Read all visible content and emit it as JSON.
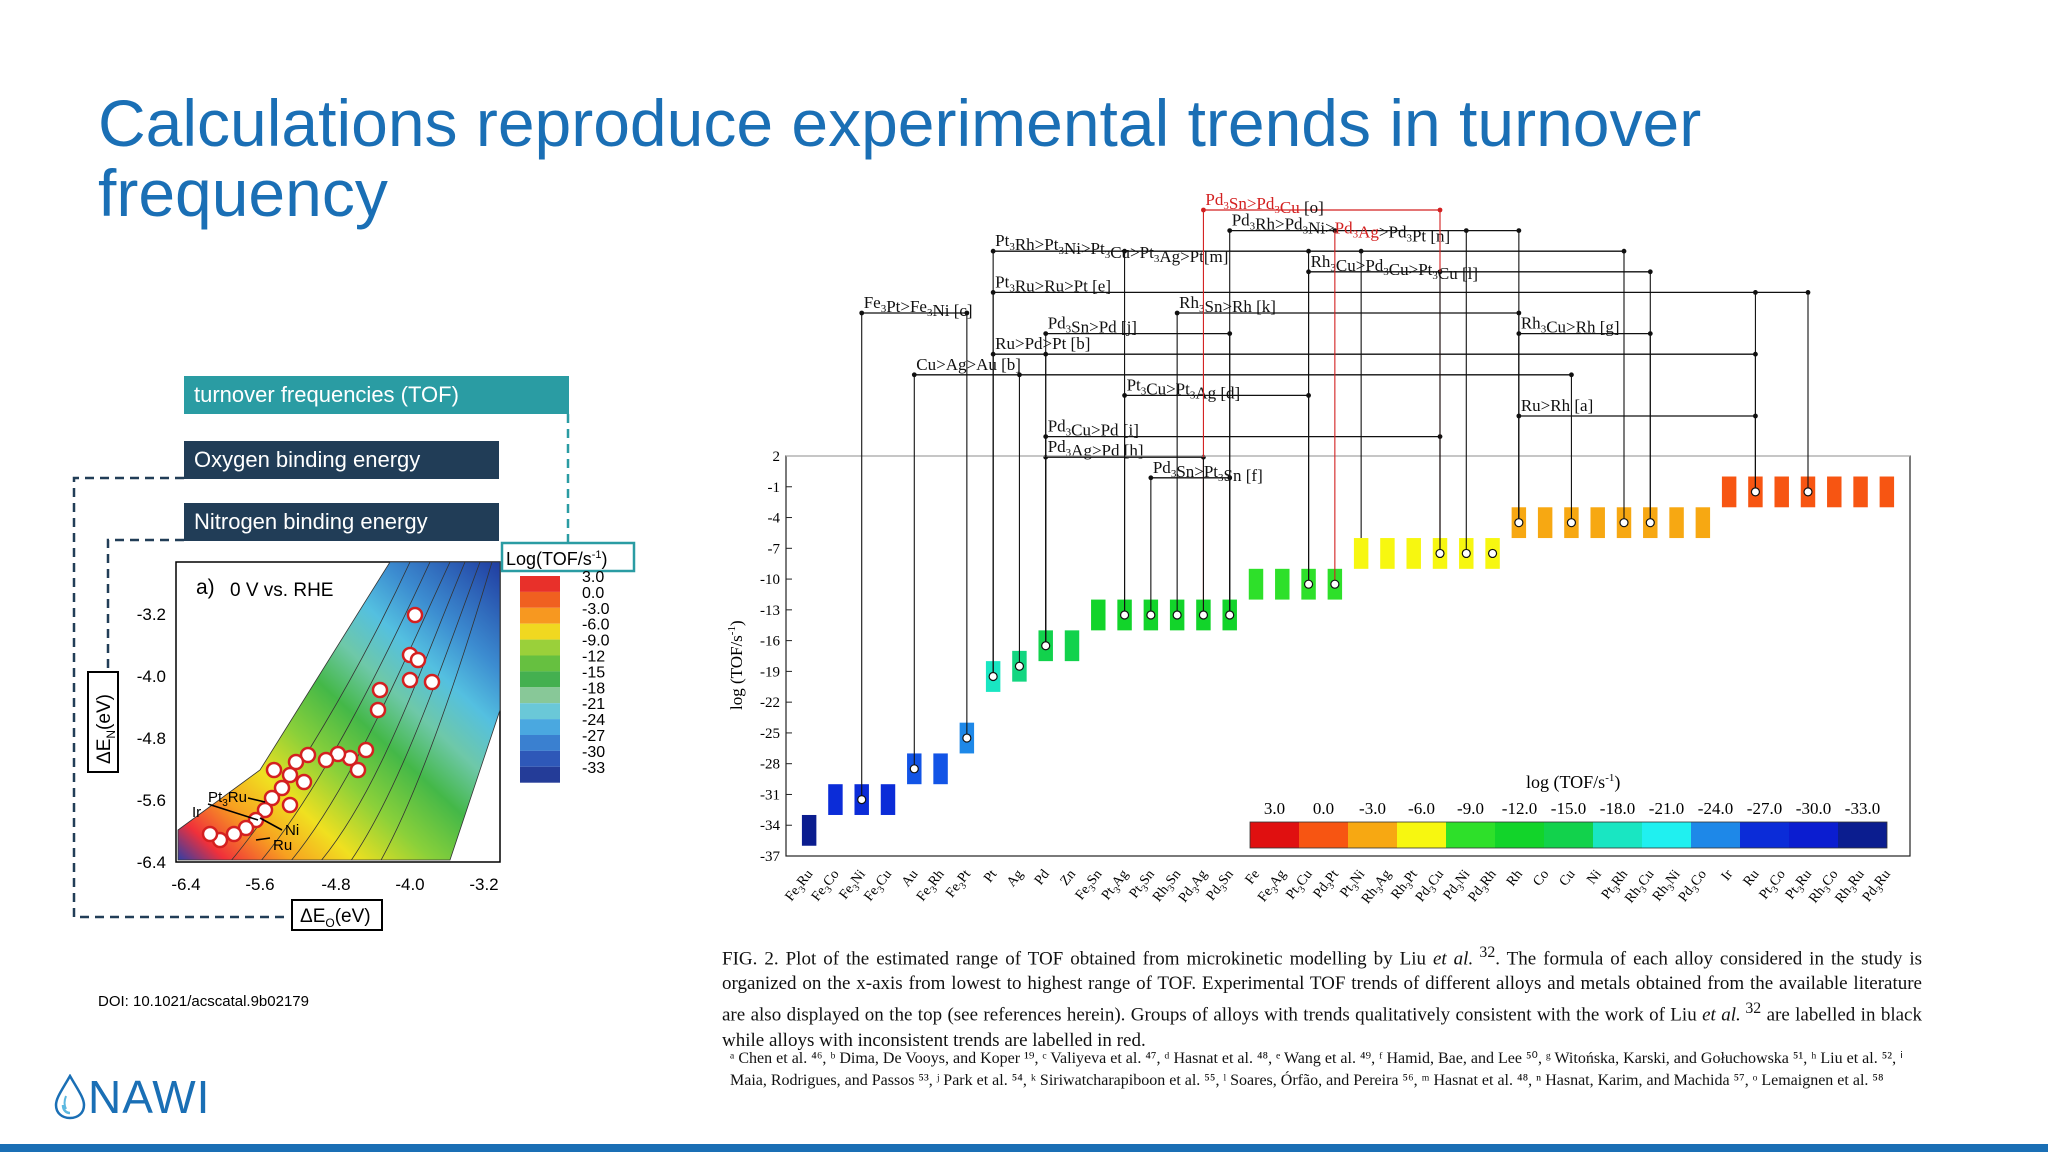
{
  "slide": {
    "title": "Calculations reproduce experimental trends in turnover frequency",
    "labels": {
      "tof": "turnover frequencies (TOF)",
      "oxygen": "Oxygen binding energy",
      "nitrogen": "Nitrogen binding energy"
    },
    "doi": "DOI: 10.1021/acscatal.9b02179",
    "logo_text": "NAWI",
    "colors": {
      "title": "#1a6fb5",
      "tof_box": "#2a9ca3",
      "dark_box": "#213d57",
      "trend_red": "#d32020"
    }
  },
  "left_plot": {
    "panel_label": "a)",
    "condition": "0 V vs. RHE",
    "xlabel": "ΔE",
    "xlabel_sub": "O",
    "xlabel_unit": "(eV)",
    "ylabel": "ΔE",
    "ylabel_sub": "N",
    "ylabel_unit": "(eV)",
    "xticks": [
      "-6.4",
      "-5.6",
      "-4.8",
      "-4.0",
      "-3.2"
    ],
    "yticks": [
      "-3.2",
      "-4.0",
      "-4.8",
      "-5.6",
      "-6.4"
    ],
    "colorbar_title": "Log(TOF/s",
    "colorbar_title_sup": "-1",
    "colorbar_title_end": ")",
    "colorbar_ticks": [
      "3.0",
      "0.0",
      "-3.0",
      "-6.0",
      "-9.0",
      "-12",
      "-15",
      "-18",
      "-21",
      "-24",
      "-27",
      "-30",
      "-33"
    ],
    "annotations": [
      "Pt",
      "3",
      "Ru",
      "Ir",
      "Ni",
      "Ru"
    ]
  },
  "chart_data": {
    "type": "bar",
    "ylabel": "log (TOF/s",
    "ylabel_sup": "-1",
    "ylabel_end": ")",
    "yticks": [
      "2",
      "-1",
      "-4",
      "-7",
      "-10",
      "-13",
      "-16",
      "-19",
      "-22",
      "-25",
      "-28",
      "-31",
      "-34",
      "-37"
    ],
    "ylim": [
      -37,
      2
    ],
    "categories": [
      {
        "n": "Fe",
        "s": "3",
        "m": "Ru"
      },
      {
        "n": "Fe",
        "s": "3",
        "m": "Co"
      },
      {
        "n": "Fe",
        "s": "3",
        "m": "Ni"
      },
      {
        "n": "Fe",
        "s": "3",
        "m": "Cu"
      },
      {
        "n": "Au",
        "s": "",
        "m": ""
      },
      {
        "n": "Fe",
        "s": "3",
        "m": "Rh"
      },
      {
        "n": "Fe",
        "s": "3",
        "m": "Pt"
      },
      {
        "n": "Pt",
        "s": "",
        "m": ""
      },
      {
        "n": "Ag",
        "s": "",
        "m": ""
      },
      {
        "n": "Pd",
        "s": "",
        "m": ""
      },
      {
        "n": "Zn",
        "s": "",
        "m": ""
      },
      {
        "n": "Fe",
        "s": "3",
        "m": "Sn"
      },
      {
        "n": "Pt",
        "s": "3",
        "m": "Ag"
      },
      {
        "n": "Pt",
        "s": "3",
        "m": "Sn"
      },
      {
        "n": "Rh",
        "s": "3",
        "m": "Sn"
      },
      {
        "n": "Pd",
        "s": "3",
        "m": "Ag"
      },
      {
        "n": "Pd",
        "s": "3",
        "m": "Sn"
      },
      {
        "n": "Fe",
        "s": "",
        "m": ""
      },
      {
        "n": "Fe",
        "s": "3",
        "m": "Ag"
      },
      {
        "n": "Pt",
        "s": "3",
        "m": "Cu"
      },
      {
        "n": "Pd",
        "s": "3",
        "m": "Pt"
      },
      {
        "n": "Pt",
        "s": "3",
        "m": "Ni"
      },
      {
        "n": "Rh",
        "s": "3",
        "m": "Ag"
      },
      {
        "n": "Rh",
        "s": "3",
        "m": "Pt"
      },
      {
        "n": "Pd",
        "s": "3",
        "m": "Cu"
      },
      {
        "n": "Pd",
        "s": "3",
        "m": "Ni"
      },
      {
        "n": "Pd",
        "s": "3",
        "m": "Rh"
      },
      {
        "n": "Rh",
        "s": "",
        "m": ""
      },
      {
        "n": "Co",
        "s": "",
        "m": ""
      },
      {
        "n": "Cu",
        "s": "",
        "m": ""
      },
      {
        "n": "Ni",
        "s": "",
        "m": ""
      },
      {
        "n": "Pt",
        "s": "3",
        "m": "Rh"
      },
      {
        "n": "Rh",
        "s": "3",
        "m": "Cu"
      },
      {
        "n": "Rh",
        "s": "3",
        "m": "Ni"
      },
      {
        "n": "Pd",
        "s": "3",
        "m": "Co"
      },
      {
        "n": "Ir",
        "s": "",
        "m": ""
      },
      {
        "n": "Ru",
        "s": "",
        "m": ""
      },
      {
        "n": "Pt",
        "s": "3",
        "m": "Co"
      },
      {
        "n": "Pt",
        "s": "3",
        "m": "Ru"
      },
      {
        "n": "Rh",
        "s": "3",
        "m": "Co"
      },
      {
        "n": "Rh",
        "s": "3",
        "m": "Ru"
      },
      {
        "n": "Pd",
        "s": "3",
        "m": "Ru"
      }
    ],
    "bars": [
      {
        "lo": -36,
        "hi": -33
      },
      {
        "lo": -33,
        "hi": -30
      },
      {
        "lo": -33,
        "hi": -30
      },
      {
        "lo": -33,
        "hi": -30
      },
      {
        "lo": -30,
        "hi": -27
      },
      {
        "lo": -30,
        "hi": -27
      },
      {
        "lo": -27,
        "hi": -24
      },
      {
        "lo": -21,
        "hi": -18
      },
      {
        "lo": -20,
        "hi": -17
      },
      {
        "lo": -18,
        "hi": -15
      },
      {
        "lo": -18,
        "hi": -15
      },
      {
        "lo": -15,
        "hi": -12
      },
      {
        "lo": -15,
        "hi": -12
      },
      {
        "lo": -15,
        "hi": -12
      },
      {
        "lo": -15,
        "hi": -12
      },
      {
        "lo": -15,
        "hi": -12
      },
      {
        "lo": -15,
        "hi": -12
      },
      {
        "lo": -12,
        "hi": -9
      },
      {
        "lo": -12,
        "hi": -9
      },
      {
        "lo": -12,
        "hi": -9
      },
      {
        "lo": -12,
        "hi": -9
      },
      {
        "lo": -9,
        "hi": -6
      },
      {
        "lo": -9,
        "hi": -6
      },
      {
        "lo": -9,
        "hi": -6
      },
      {
        "lo": -9,
        "hi": -6
      },
      {
        "lo": -9,
        "hi": -6
      },
      {
        "lo": -9,
        "hi": -6
      },
      {
        "lo": -6,
        "hi": -3
      },
      {
        "lo": -6,
        "hi": -3
      },
      {
        "lo": -6,
        "hi": -3
      },
      {
        "lo": -6,
        "hi": -3
      },
      {
        "lo": -6,
        "hi": -3
      },
      {
        "lo": -6,
        "hi": -3
      },
      {
        "lo": -6,
        "hi": -3
      },
      {
        "lo": -6,
        "hi": -3
      },
      {
        "lo": -3,
        "hi": 0
      },
      {
        "lo": -3,
        "hi": 0
      },
      {
        "lo": -3,
        "hi": 0
      },
      {
        "lo": -3,
        "hi": 0
      },
      {
        "lo": -3,
        "hi": 0
      },
      {
        "lo": -3,
        "hi": 0
      },
      {
        "lo": -3,
        "hi": 0
      }
    ],
    "bar_colors": [
      "#0b1d8f",
      "#0b2cd8",
      "#0b2cd8",
      "#0b2cd8",
      "#1254e6",
      "#1254e6",
      "#1e88e8",
      "#19e6c2",
      "#12d680",
      "#12d24c",
      "#12d24c",
      "#12d42a",
      "#12d42a",
      "#12d42a",
      "#12d42a",
      "#12d42a",
      "#12d42a",
      "#2ee02a",
      "#2ee02a",
      "#2ee02a",
      "#2ee02a",
      "#f7f710",
      "#f7f710",
      "#f7f710",
      "#f7f710",
      "#f7f710",
      "#f7f710",
      "#f7a812",
      "#f7a812",
      "#f7a812",
      "#f7a812",
      "#f7a812",
      "#f7a812",
      "#f7a812",
      "#f7a812",
      "#f75512",
      "#f75512",
      "#f75512",
      "#f75512",
      "#f75512",
      "#f75512",
      "#f75512"
    ],
    "markers": [
      2,
      4,
      6,
      7,
      8,
      9,
      12,
      13,
      14,
      15,
      16,
      19,
      20,
      24,
      25,
      26,
      27,
      29,
      31,
      32,
      36,
      38
    ],
    "legend_title": "log (TOF/s",
    "legend_title_sup": "-1",
    "legend_title_end": ")",
    "legend_ticks": [
      "3.0",
      "0.0",
      "-3.0",
      "-6.0",
      "-9.0",
      "-12.0",
      "-15.0",
      "-18.0",
      "-21.0",
      "-24.0",
      "-27.0",
      "-30.0",
      "-33.0"
    ],
    "legend_colors": [
      "#e01010",
      "#f75512",
      "#f7a812",
      "#f7f710",
      "#2ee02a",
      "#12d42a",
      "#12d24c",
      "#19e6c2",
      "#20f0f0",
      "#1e88e8",
      "#0b2cd8",
      "#0b1dd0",
      "#0b1d8f"
    ],
    "trends": [
      {
        "parts": [
          {
            "t": "Pd"
          },
          {
            "t": "3",
            "sub": true
          },
          {
            "t": "Sn>Pd"
          },
          {
            "t": "3",
            "sub": true
          },
          {
            "t": "Cu"
          }
        ],
        "ref": " [o]",
        "red": true,
        "level": 0,
        "x0": 15,
        "x1": 24,
        "drops": [
          15,
          24
        ]
      },
      {
        "parts": [
          {
            "t": "Pd"
          },
          {
            "t": "3",
            "sub": true
          },
          {
            "t": "Rh>Pd"
          },
          {
            "t": "3",
            "sub": true
          },
          {
            "t": "Ni>"
          },
          {
            "t": "Pd",
            "red": true
          },
          {
            "t": "3",
            "sub": true,
            "red": true
          },
          {
            "t": "Ag",
            "red": true
          },
          {
            "t": ">Pd"
          },
          {
            "t": "3",
            "sub": true
          },
          {
            "t": "Pt"
          }
        ],
        "ref": " [n]",
        "red": false,
        "level": 1,
        "x0": 16,
        "x1": 27,
        "drops": [
          16,
          20,
          25,
          27
        ]
      },
      {
        "parts": [
          {
            "t": "Pt"
          },
          {
            "t": "3",
            "sub": true
          },
          {
            "t": "Rh>Pt"
          },
          {
            "t": "3",
            "sub": true
          },
          {
            "t": "Ni>Pt"
          },
          {
            "t": "3",
            "sub": true
          },
          {
            "t": "Cu>Pt"
          },
          {
            "t": "3",
            "sub": true
          },
          {
            "t": "Ag>Pt"
          }
        ],
        "ref": "[m]",
        "red": false,
        "level": 2,
        "x0": 7,
        "x1": 31,
        "drops": [
          7,
          12,
          19,
          21,
          31
        ]
      },
      {
        "parts": [
          {
            "t": "Rh"
          },
          {
            "t": "3",
            "sub": true
          },
          {
            "t": "Cu>Pd"
          },
          {
            "t": "3",
            "sub": true
          },
          {
            "t": "Cu>Pt"
          },
          {
            "t": "3",
            "sub": true
          },
          {
            "t": "Cu"
          }
        ],
        "ref": " [l]",
        "red": false,
        "level": 3,
        "x0": 19,
        "x1": 32,
        "drops": [
          19,
          24,
          32
        ]
      },
      {
        "parts": [
          {
            "t": "Pt"
          },
          {
            "t": "3",
            "sub": true
          },
          {
            "t": "Ru>Ru>Pt"
          }
        ],
        "ref": " [e]",
        "red": false,
        "level": 4,
        "x0": 7,
        "x1": 38,
        "drops": [
          7,
          36,
          38
        ]
      },
      {
        "parts": [
          {
            "t": "Fe"
          },
          {
            "t": "3",
            "sub": true
          },
          {
            "t": "Pt>Fe"
          },
          {
            "t": "3",
            "sub": true
          },
          {
            "t": "Ni"
          }
        ],
        "ref": " [c]",
        "red": false,
        "level": 5,
        "x0": 2,
        "x1": 6,
        "drops": [
          2,
          6
        ]
      },
      {
        "parts": [
          {
            "t": "Rh"
          },
          {
            "t": "3",
            "sub": true
          },
          {
            "t": "Sn>Rh"
          }
        ],
        "ref": " [k]",
        "red": false,
        "level": 5,
        "x0": 14,
        "x1": 27,
        "drops": [
          14,
          27
        ]
      },
      {
        "parts": [
          {
            "t": "Rh"
          },
          {
            "t": "3",
            "sub": true
          },
          {
            "t": "Cu>Rh"
          }
        ],
        "ref": " [g]",
        "red": false,
        "level": 6,
        "x0": 27,
        "x1": 32,
        "drops": [
          27,
          32
        ]
      },
      {
        "parts": [
          {
            "t": "Pd"
          },
          {
            "t": "3",
            "sub": true
          },
          {
            "t": "Sn>Pd"
          }
        ],
        "ref": " [j]",
        "red": false,
        "level": 6,
        "x0": 9,
        "x1": 16,
        "drops": [
          9,
          16
        ]
      },
      {
        "parts": [
          {
            "t": "Ru>Pd>Pt"
          }
        ],
        "ref": " [b]",
        "red": false,
        "level": 7,
        "x0": 7,
        "x1": 36,
        "drops": [
          7,
          9,
          36
        ]
      },
      {
        "parts": [
          {
            "t": "Cu>Ag>Au"
          }
        ],
        "ref": " [b]",
        "red": false,
        "level": 8,
        "x0": 4,
        "x1": 29,
        "drops": [
          4,
          8,
          29
        ]
      },
      {
        "parts": [
          {
            "t": "Pt"
          },
          {
            "t": "3",
            "sub": true
          },
          {
            "t": "Cu>Pt"
          },
          {
            "t": "3",
            "sub": true
          },
          {
            "t": "Ag"
          }
        ],
        "ref": " [d]",
        "red": false,
        "level": 9,
        "x0": 12,
        "x1": 19,
        "drops": [
          12,
          19
        ]
      },
      {
        "parts": [
          {
            "t": "Ru>Rh"
          }
        ],
        "ref": " [a]",
        "red": false,
        "level": 10,
        "x0": 27,
        "x1": 36,
        "drops": [
          27,
          36
        ]
      },
      {
        "parts": [
          {
            "t": "Pd"
          },
          {
            "t": "3",
            "sub": true
          },
          {
            "t": "Cu>Pd"
          }
        ],
        "ref": " [i]",
        "red": false,
        "level": 11,
        "x0": 9,
        "x1": 24,
        "drops": [
          9,
          24
        ]
      },
      {
        "parts": [
          {
            "t": "Pd"
          },
          {
            "t": "3",
            "sub": true
          },
          {
            "t": "Ag>Pd"
          }
        ],
        "ref": " [h]",
        "red": false,
        "level": 12,
        "x0": 9,
        "x1": 15,
        "drops": [
          9,
          15
        ]
      },
      {
        "parts": [
          {
            "t": "Pd"
          },
          {
            "t": "3",
            "sub": true
          },
          {
            "t": "Sn>Pt"
          },
          {
            "t": "3",
            "sub": true
          },
          {
            "t": "Sn"
          }
        ],
        "ref": " [f]",
        "red": false,
        "level": 13,
        "x0": 13,
        "x1": 16,
        "drops": [
          13,
          16
        ]
      }
    ]
  },
  "caption": {
    "fig_label": "FIG. 2.",
    "part1": " Plot of the estimated range of TOF obtained from microkinetic modelling by Liu ",
    "etal": "et al.",
    "sup1": " 32",
    "part2": ". The formula of each alloy considered in the study is organized on the x-axis from lowest to highest range of TOF. Experimental TOF trends of different alloys and metals obtained from the available literature are also displayed on the top (see references herein). Groups of alloys with trends qualitatively consistent with the work of Liu ",
    "etal2": "et al.",
    "sup2": " 32",
    "part3": " are labelled in black while alloys with inconsistent trends are labelled in red."
  },
  "references": "ᵃ Chen et al. ⁴⁶, ᵇ Dima, De Vooys, and Koper ¹⁹, ᶜ Valiyeva et al. ⁴⁷, ᵈ Hasnat et al. ⁴⁸, ᵉ Wang et al. ⁴⁹, ᶠ Hamid, Bae, and Lee ⁵⁰, ᵍ Witońska, Karski, and Gołuchowska ⁵¹, ʰ Liu et al. ⁵², ⁱ Maia, Rodrigues, and Passos ⁵³, ʲ Park et al. ⁵⁴, ᵏ Siriwatcharapiboon et al. ⁵⁵, ˡ Soares, Órfão, and Pereira ⁵⁶, ᵐ Hasnat et al. ⁴⁸, ⁿ Hasnat, Karim, and Machida ⁵⁷, ᵒ Lemaignen et al. ⁵⁸"
}
